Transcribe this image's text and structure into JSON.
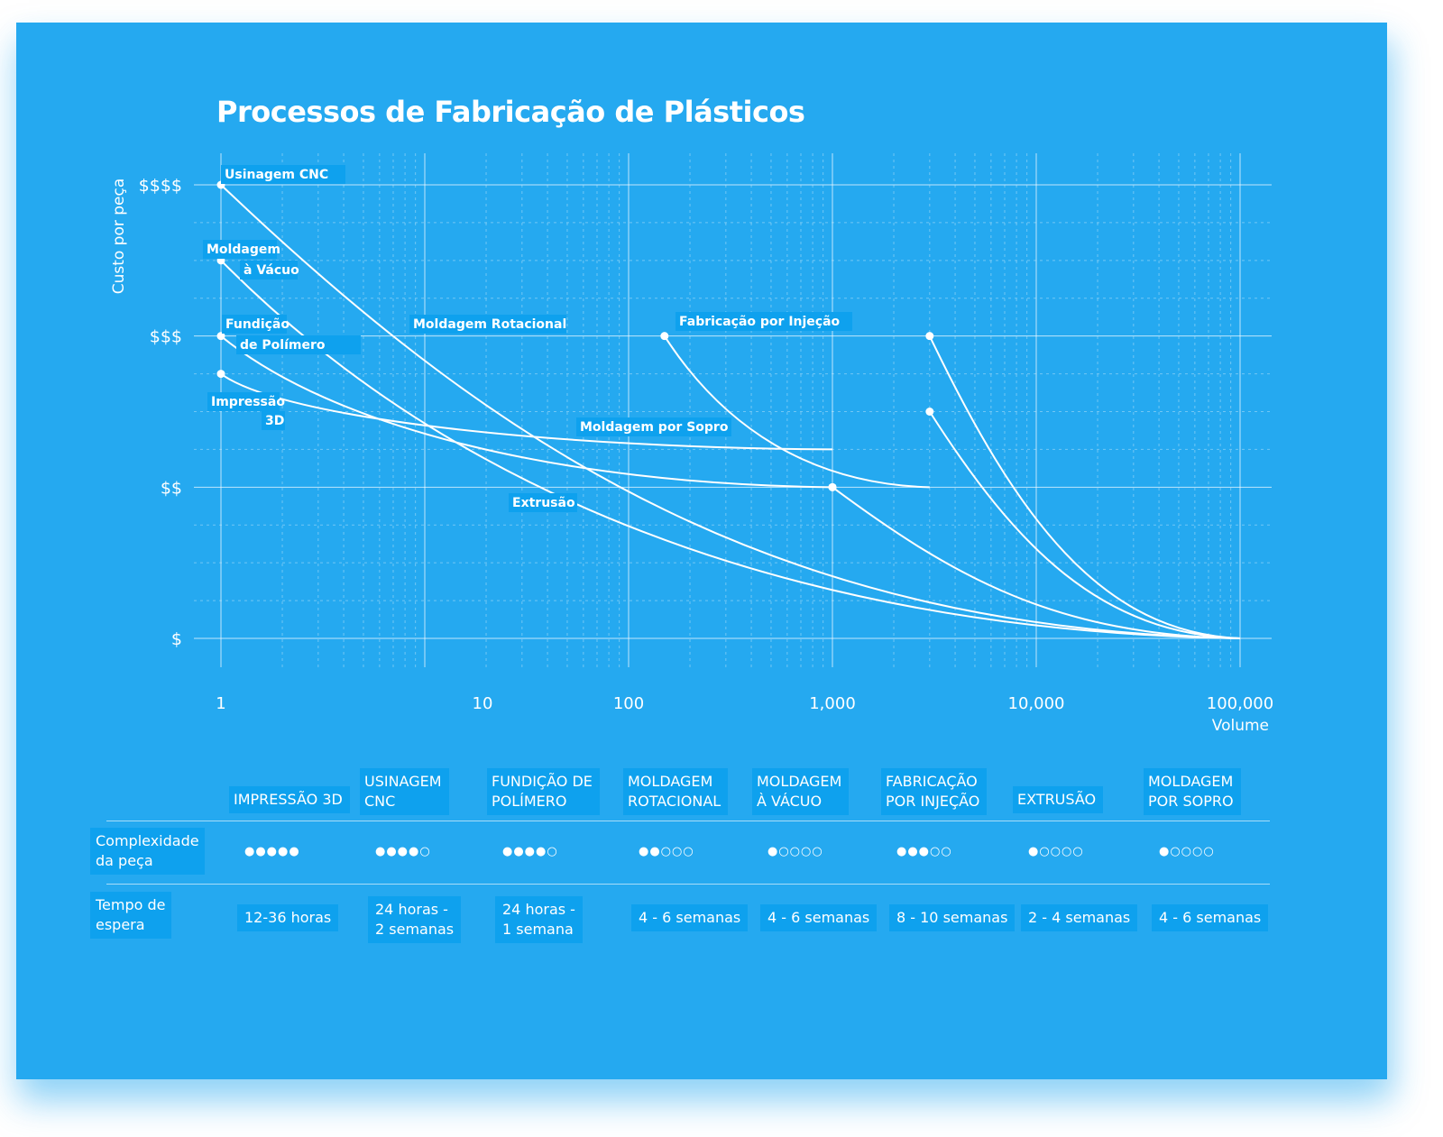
{
  "title": "Processos de Fabricação de Plásticos",
  "chart_data": {
    "type": "line",
    "title": "Processos de Fabricação de Plásticos",
    "xlabel": "Volume",
    "ylabel": "Custo por peça",
    "x_scale": "log",
    "xlim": [
      1,
      100000
    ],
    "x_ticks": [
      "1",
      "10",
      "100",
      "1,000",
      "10,000",
      "100,000"
    ],
    "y_ticks": [
      "$",
      "$$",
      "$$$",
      "$$$$"
    ],
    "ylim": [
      1,
      4
    ],
    "grid": true,
    "series": [
      {
        "name": "Usinagem CNC",
        "start": [
          1,
          4.0
        ],
        "end": [
          100000,
          1.0
        ]
      },
      {
        "name": "Moldagem à Vácuo",
        "start": [
          1,
          3.5
        ],
        "end": [
          100000,
          1.0
        ]
      },
      {
        "name": "Fundição de Polímero",
        "start": [
          1,
          3.0
        ],
        "end": [
          1000,
          2.0
        ]
      },
      {
        "name": "Impressão 3D",
        "start": [
          1,
          2.75
        ],
        "end": [
          1000,
          2.25
        ]
      },
      {
        "name": "Moldagem Rotacional",
        "start": [
          150,
          3.0
        ],
        "end": [
          3000,
          2.0
        ]
      },
      {
        "name": "Fabricação por Injeção",
        "start": [
          3000,
          3.0
        ],
        "end": [
          100000,
          1.0
        ]
      },
      {
        "name": "Moldagem por Sopro",
        "start": [
          3000,
          2.5
        ],
        "end": [
          100000,
          1.0
        ]
      },
      {
        "name": "Extrusão",
        "start": [
          1000,
          2.0
        ],
        "end": [
          100000,
          1.0
        ]
      }
    ]
  },
  "point_labels": {
    "cnc": "Usinagem CNC",
    "vacuo_1": "Moldagem",
    "vacuo_2": "à Vácuo",
    "fundicao_1": "Fundição",
    "fundicao_2": "de Polímero",
    "impressao_1": "Impressão",
    "impressao_2": "3D",
    "rotacional": "Moldagem Rotacional",
    "injecao": "Fabricação por Injeção",
    "sopro": "Moldagem por Sopro",
    "extrusao": "Extrusão"
  },
  "table": {
    "headers": [
      [
        "IMPRESSÃO 3D"
      ],
      [
        "USINAGEM",
        "CNC"
      ],
      [
        "FUNDIÇÃO DE",
        "POLÍMERO"
      ],
      [
        "MOLDAGEM",
        "ROTACIONAL"
      ],
      [
        "MOLDAGEM",
        "À VÁCUO"
      ],
      [
        "FABRICAÇÃO",
        "POR INJEÇÃO"
      ],
      [
        "EXTRUSÃO"
      ],
      [
        "MOLDAGEM",
        "POR SOPRO"
      ]
    ],
    "row_labels": {
      "complexidade": [
        "Complexidade",
        "da peça"
      ],
      "tempo": [
        "Tempo de",
        "espera"
      ]
    },
    "complexidade": [
      5,
      4,
      4,
      2,
      1,
      3,
      1,
      1
    ],
    "complexidade_max": 5,
    "tempo": [
      [
        "12-36 horas"
      ],
      [
        "24 horas -",
        "2 semanas"
      ],
      [
        "24 horas -",
        "1 semana"
      ],
      [
        "4 - 6 semanas"
      ],
      [
        "4 - 6 semanas"
      ],
      [
        "8 - 10 semanas"
      ],
      [
        "2 - 4 semanas"
      ],
      [
        "4 - 6 semanas"
      ]
    ]
  }
}
